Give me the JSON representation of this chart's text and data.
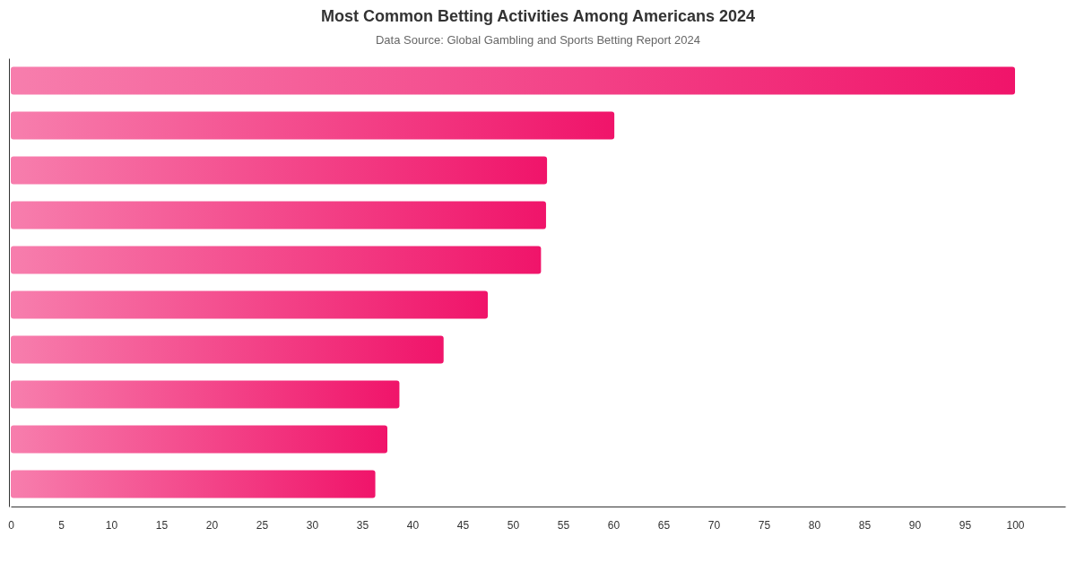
{
  "chart_data": {
    "type": "bar",
    "orientation": "horizontal",
    "title": "Most Common Betting Activities Among Americans 2024",
    "annotations": [
      "Data Source: Global Gambling and Sports Betting Report 2024"
    ],
    "categories": [
      null,
      null,
      null,
      null,
      null,
      null,
      null,
      null,
      null,
      null
    ],
    "values": [
      100,
      60.1,
      53.4,
      53.3,
      52.8,
      47.5,
      43.1,
      38.7,
      37.5,
      36.3
    ],
    "color": "#f0146a",
    "xlim": [
      0,
      105
    ],
    "xticks": [
      0,
      5,
      10,
      15,
      20,
      25,
      30,
      35,
      40,
      45,
      50,
      55,
      60,
      65,
      70,
      75,
      80,
      85,
      90,
      95,
      100
    ],
    "grid": false
  }
}
